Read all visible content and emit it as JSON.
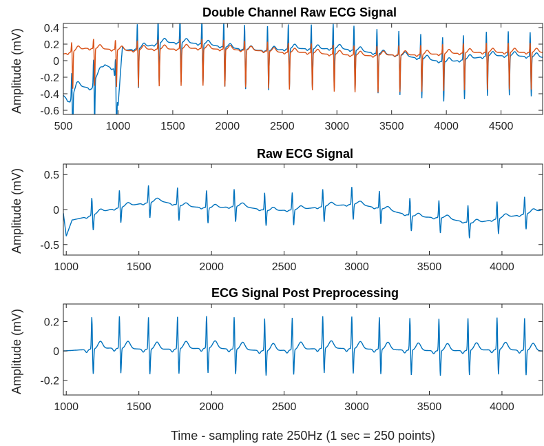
{
  "figure": {
    "xlabel": "Time - sampling rate 250Hz (1 sec = 250 points)",
    "colors": {
      "ch1": "#0072bd",
      "ch2": "#d95319",
      "axis": "#262626",
      "background": "#ffffff"
    }
  },
  "chart_data": [
    {
      "type": "line",
      "title": "Double Channel Raw ECG Signal",
      "ylabel": "Amplitude (mV)",
      "xlabel": "",
      "xlim": [
        500,
        4880
      ],
      "ylim": [
        -0.65,
        0.45
      ],
      "xticks": [
        500,
        1000,
        1500,
        2000,
        2500,
        3000,
        3500,
        4000,
        4500
      ],
      "yticks": [
        0.4,
        0.2,
        0,
        -0.2,
        -0.4,
        -0.6
      ],
      "beat_times": [
        580,
        780,
        980,
        1180,
        1370,
        1570,
        1770,
        1970,
        2160,
        2370,
        2560,
        2770,
        2970,
        3160,
        3370,
        3570,
        3770,
        3970,
        4160,
        4370,
        4570,
        4770
      ],
      "series": [
        {
          "color": "#0072bd",
          "baseline": [
            [
              500,
              -0.42
            ],
            [
              560,
              -0.5
            ],
            [
              620,
              -0.3
            ],
            [
              700,
              -0.32
            ],
            [
              760,
              -0.34
            ],
            [
              800,
              -0.2
            ],
            [
              880,
              -0.05
            ],
            [
              960,
              -0.1
            ],
            [
              1000,
              -0.55
            ],
            [
              1040,
              0.12
            ],
            [
              1200,
              0.15
            ],
            [
              1400,
              0.22
            ],
            [
              1600,
              0.22
            ],
            [
              1800,
              0.2
            ],
            [
              2000,
              0.16
            ],
            [
              2200,
              0.13
            ],
            [
              2400,
              0.12
            ],
            [
              2600,
              0.15
            ],
            [
              2800,
              0.14
            ],
            [
              3000,
              0.15
            ],
            [
              3200,
              0.12
            ],
            [
              3400,
              0.08
            ],
            [
              3600,
              0.06
            ],
            [
              3800,
              0.02
            ],
            [
              4000,
              -0.02
            ],
            [
              4200,
              0.02
            ],
            [
              4400,
              0.06
            ],
            [
              4600,
              0.06
            ],
            [
              4880,
              0.04
            ]
          ],
          "r_peak": 0.3,
          "s_depth": 0.48
        },
        {
          "color": "#d95319",
          "baseline": [
            [
              500,
              0.08
            ],
            [
              700,
              0.15
            ],
            [
              900,
              0.14
            ],
            [
              1100,
              0.12
            ],
            [
              1300,
              0.14
            ],
            [
              1500,
              0.14
            ],
            [
              1700,
              0.15
            ],
            [
              1900,
              0.14
            ],
            [
              2100,
              0.13
            ],
            [
              2300,
              0.12
            ],
            [
              2500,
              0.1
            ],
            [
              2700,
              0.1
            ],
            [
              2900,
              0.08
            ],
            [
              3100,
              0.07
            ],
            [
              3300,
              0.06
            ],
            [
              3500,
              0.07
            ],
            [
              3700,
              0.07
            ],
            [
              3900,
              0.08
            ],
            [
              4100,
              0.09
            ],
            [
              4300,
              0.1
            ],
            [
              4500,
              0.1
            ],
            [
              4700,
              0.1
            ],
            [
              4880,
              0.1
            ]
          ],
          "r_peak": 0.12,
          "s_depth": 0.45
        }
      ]
    },
    {
      "type": "line",
      "title": "Raw ECG Signal",
      "ylabel": "Amplitude (mV)",
      "xlabel": "",
      "xlim": [
        980,
        4280
      ],
      "ylim": [
        -0.65,
        0.65
      ],
      "xticks": [
        1000,
        1500,
        2000,
        2500,
        3000,
        3500,
        4000
      ],
      "yticks": [
        0.5,
        0,
        -0.5
      ],
      "beat_times": [
        1180,
        1370,
        1570,
        1770,
        1970,
        2160,
        2370,
        2560,
        2770,
        2970,
        3160,
        3370,
        3570,
        3770,
        3970,
        4160
      ],
      "series": [
        {
          "color": "#0072bd",
          "baseline": [
            [
              980,
              -0.05
            ],
            [
              1000,
              -0.38
            ],
            [
              1040,
              -0.15
            ],
            [
              1150,
              -0.1
            ],
            [
              1300,
              0.0
            ],
            [
              1500,
              0.08
            ],
            [
              1650,
              0.12
            ],
            [
              1800,
              0.05
            ],
            [
              2000,
              0.02
            ],
            [
              2200,
              0.05
            ],
            [
              2400,
              -0.02
            ],
            [
              2600,
              0.0
            ],
            [
              2800,
              0.05
            ],
            [
              3000,
              0.08
            ],
            [
              3200,
              0.0
            ],
            [
              3400,
              -0.1
            ],
            [
              3600,
              -0.12
            ],
            [
              3800,
              -0.2
            ],
            [
              4000,
              -0.12
            ],
            [
              4200,
              -0.05
            ],
            [
              4280,
              0.0
            ]
          ],
          "r_peak": 0.25,
          "s_depth": 0.22
        }
      ]
    },
    {
      "type": "line",
      "title": "ECG Signal Post Preprocessing",
      "ylabel": "Amplitude (mV)",
      "xlabel": "Time - sampling rate 250Hz (1 sec = 250 points)",
      "xlim": [
        980,
        4280
      ],
      "ylim": [
        -0.3,
        0.32
      ],
      "xticks": [
        1000,
        1500,
        2000,
        2500,
        3000,
        3500,
        4000
      ],
      "yticks": [
        0.2,
        0,
        -0.2
      ],
      "beat_times": [
        1180,
        1370,
        1570,
        1770,
        1970,
        2160,
        2370,
        2560,
        2770,
        2970,
        3160,
        3370,
        3570,
        3770,
        3970,
        4160
      ],
      "series": [
        {
          "color": "#0072bd",
          "baseline": [
            [
              980,
              0.0
            ],
            [
              1300,
              0.02
            ],
            [
              1600,
              0.01
            ],
            [
              2000,
              0.02
            ],
            [
              2400,
              0.0
            ],
            [
              2800,
              0.02
            ],
            [
              3200,
              0.01
            ],
            [
              3600,
              0.0
            ],
            [
              4000,
              0.01
            ],
            [
              4280,
              0.0
            ]
          ],
          "r_peak": 0.22,
          "s_depth": 0.17
        }
      ]
    }
  ]
}
